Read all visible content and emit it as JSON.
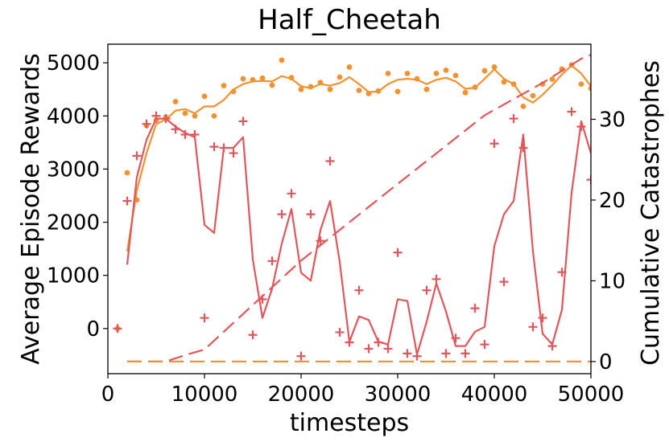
{
  "chart_data": {
    "type": "line",
    "title": "Half_Cheetah",
    "xlabel": "timesteps",
    "ylabel": "Average Episode Rewards",
    "y2label": "Cumulative Catastrophes",
    "xlim": [
      0,
      50000
    ],
    "ylim": [
      -850,
      5350
    ],
    "y2lim": [
      -1.5,
      39.3
    ],
    "xticks": [
      0,
      10000,
      20000,
      30000,
      40000,
      50000
    ],
    "xtick_labels": [
      "0",
      "10000",
      "20000",
      "30000",
      "40000",
      "50000"
    ],
    "yticks": [
      0,
      1000,
      2000,
      3000,
      4000,
      5000
    ],
    "ytick_labels": [
      "0",
      "1000",
      "2000",
      "3000",
      "4000",
      "5000"
    ],
    "y2ticks": [
      0,
      10,
      20,
      30
    ],
    "y2tick_labels": [
      "0",
      "10",
      "20",
      "30"
    ],
    "colors": {
      "orange": "#f39130",
      "red": "#e0565b"
    },
    "series": [
      {
        "name": "orange rewards (dots)",
        "kind": "scatter",
        "marker": "dot",
        "axis": "left",
        "color": "#f39130",
        "x": [
          1000,
          2000,
          3000,
          4000,
          5000,
          6000,
          7000,
          8000,
          9000,
          10000,
          11000,
          12000,
          13000,
          14000,
          15000,
          16000,
          17000,
          18000,
          19000,
          20000,
          21000,
          22000,
          23000,
          24000,
          25000,
          26000,
          27000,
          28000,
          29000,
          30000,
          31000,
          32000,
          33000,
          34000,
          35000,
          36000,
          37000,
          38000,
          39000,
          40000,
          41000,
          42000,
          43000,
          44000,
          45000,
          46000,
          47000,
          48000,
          49000,
          50000
        ],
        "y": [
          0,
          2930,
          2420,
          3820,
          3920,
          3980,
          4270,
          4050,
          4000,
          4370,
          4000,
          4570,
          4460,
          4700,
          4680,
          4710,
          4580,
          5050,
          4720,
          4500,
          4550,
          4630,
          4500,
          4730,
          4920,
          4480,
          4420,
          4470,
          4800,
          4460,
          4800,
          4700,
          4500,
          4800,
          4860,
          4760,
          4440,
          4540,
          4850,
          4920,
          4640,
          4600,
          4180,
          4380,
          4600,
          4690,
          4880,
          4960,
          4600,
          4520
        ]
      },
      {
        "name": "orange rewards (smoothed)",
        "kind": "line",
        "axis": "left",
        "color": "#f39130",
        "x": [
          2000,
          3000,
          4000,
          5000,
          6000,
          7000,
          8000,
          9000,
          10000,
          11000,
          12000,
          13000,
          14000,
          15000,
          16000,
          17000,
          18000,
          19000,
          20000,
          21000,
          22000,
          23000,
          24000,
          25000,
          26000,
          27000,
          28000,
          29000,
          30000,
          31000,
          32000,
          33000,
          34000,
          35000,
          36000,
          37000,
          38000,
          39000,
          40000,
          41000,
          42000,
          43000,
          44000,
          45000,
          46000,
          47000,
          48000,
          49000,
          50000
        ],
        "y": [
          1450,
          2600,
          3300,
          3850,
          3930,
          4100,
          4130,
          4050,
          4180,
          4180,
          4300,
          4500,
          4600,
          4650,
          4660,
          4650,
          4750,
          4700,
          4560,
          4520,
          4600,
          4570,
          4620,
          4730,
          4600,
          4450,
          4460,
          4600,
          4680,
          4700,
          4680,
          4600,
          4680,
          4720,
          4650,
          4510,
          4530,
          4700,
          4880,
          4700,
          4600,
          4350,
          4250,
          4400,
          4580,
          4780,
          4950,
          4800,
          4560
        ]
      },
      {
        "name": "red rewards (crosses)",
        "kind": "scatter",
        "marker": "plus",
        "axis": "left",
        "color": "#e0565b",
        "x": [
          1000,
          2000,
          3000,
          4000,
          5000,
          6000,
          7000,
          8000,
          9000,
          10000,
          11000,
          12000,
          13000,
          14000,
          15000,
          16000,
          17000,
          18000,
          19000,
          20000,
          21000,
          22000,
          23000,
          24000,
          25000,
          26000,
          27000,
          28000,
          29000,
          30000,
          31000,
          32000,
          33000,
          34000,
          35000,
          36000,
          37000,
          38000,
          39000,
          40000,
          41000,
          42000,
          43000,
          44000,
          45000,
          46000,
          47000,
          48000,
          49000,
          50000
        ],
        "y": [
          0,
          2400,
          3250,
          3850,
          4000,
          3950,
          3750,
          3650,
          3650,
          200,
          3420,
          3400,
          3300,
          3900,
          -120,
          550,
          1270,
          2150,
          2540,
          -520,
          2150,
          1650,
          3150,
          -70,
          -260,
          720,
          -380,
          -260,
          -380,
          1430,
          -470,
          -520,
          720,
          930,
          -470,
          -180,
          -470,
          380,
          -300,
          3480,
          880,
          3950,
          3400,
          30,
          200,
          -330,
          1060,
          4080,
          3800,
          2800
        ]
      },
      {
        "name": "red rewards (smoothed)",
        "kind": "line",
        "axis": "left",
        "color": "#e0565b",
        "x": [
          2000,
          3000,
          4000,
          5000,
          6000,
          7000,
          8000,
          9000,
          10000,
          11000,
          12000,
          13000,
          14000,
          15000,
          16000,
          17000,
          18000,
          19000,
          20000,
          21000,
          22000,
          23000,
          24000,
          25000,
          26000,
          27000,
          28000,
          29000,
          30000,
          31000,
          32000,
          33000,
          34000,
          35000,
          36000,
          37000,
          38000,
          39000,
          40000,
          41000,
          42000,
          43000,
          44000,
          45000,
          46000,
          47000,
          48000,
          49000,
          50000
        ],
        "y": [
          1200,
          2850,
          3550,
          3950,
          3950,
          3800,
          3680,
          3600,
          1950,
          1800,
          3400,
          3400,
          3600,
          1300,
          200,
          750,
          1600,
          2250,
          1050,
          900,
          1850,
          2400,
          1250,
          -250,
          230,
          160,
          -250,
          -300,
          550,
          520,
          -490,
          130,
          850,
          320,
          -330,
          -330,
          -60,
          30,
          1550,
          2150,
          2400,
          3650,
          1450,
          -100,
          -300,
          350,
          2550,
          3900,
          3300
        ]
      },
      {
        "name": "red cumulative catastrophes",
        "kind": "line",
        "style": "dashed",
        "axis": "right",
        "color": "#e0565b",
        "x": [
          2000,
          6000,
          8000,
          10000,
          20000,
          30000,
          39000,
          45000,
          49000,
          50000
        ],
        "y": [
          0,
          0,
          0.8,
          1.5,
          12.5,
          22,
          30.5,
          34.5,
          37.5,
          38
        ]
      },
      {
        "name": "orange cumulative catastrophes",
        "kind": "line",
        "style": "dashed",
        "axis": "right",
        "color": "#f39130",
        "x": [
          2000,
          50000
        ],
        "y": [
          0,
          0
        ]
      }
    ]
  }
}
